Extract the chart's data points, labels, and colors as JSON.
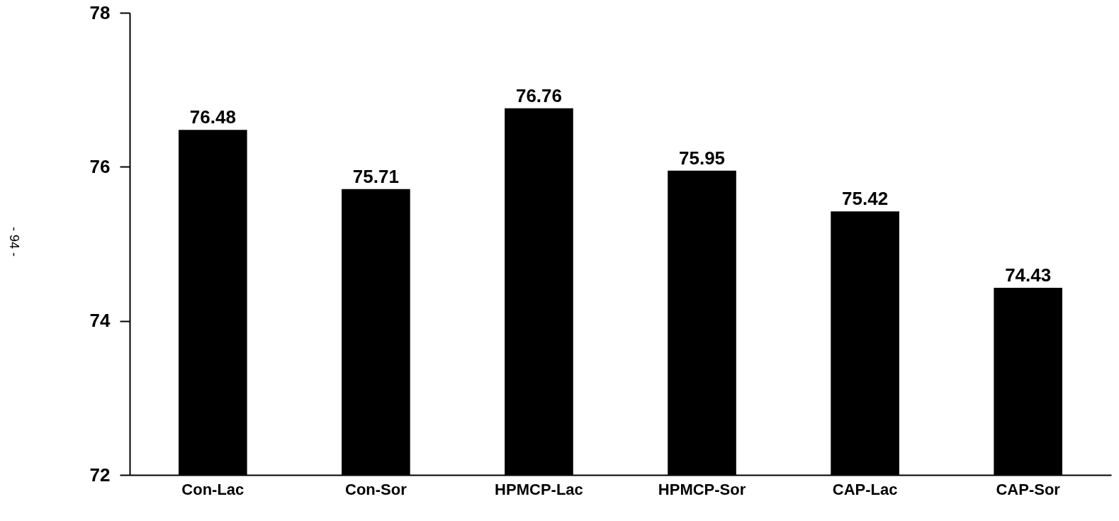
{
  "chart_data": {
    "type": "bar",
    "categories": [
      "Con-Lac",
      "Con-Sor",
      "HPMCP-Lac",
      "HPMCP-Sor",
      "CAP-Lac",
      "CAP-Sor"
    ],
    "values": [
      76.48,
      75.71,
      76.76,
      75.95,
      75.42,
      74.43
    ],
    "color": "#000000",
    "ylim": [
      72,
      78
    ],
    "yticks": [
      72,
      74,
      76,
      78
    ],
    "grid": false,
    "data_labels": true,
    "annotations": [
      "- 94 -"
    ]
  }
}
